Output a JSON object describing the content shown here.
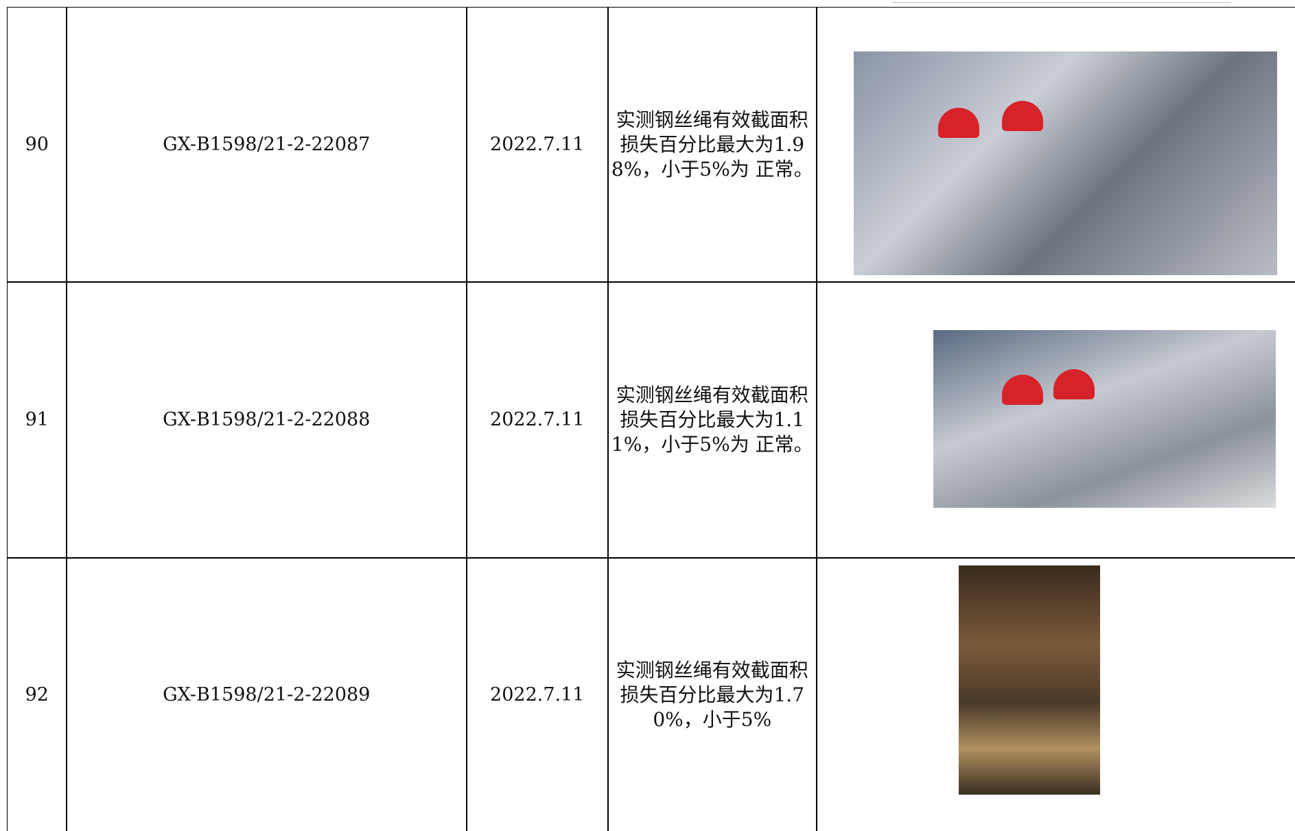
{
  "table": {
    "rows": [
      {
        "no": "90",
        "code": "GX-B1598/21-2-22087",
        "date": "2022.7.11",
        "result": "实测钢丝绳有效截面积损失百分比最大为1.98%，小于5%为 正常。"
      },
      {
        "no": "91",
        "code": "GX-B1598/21-2-22088",
        "date": "2022.7.11",
        "result": "实测钢丝绳有效截面积损失百分比最大为1.11%，小于5%为 正常。"
      },
      {
        "no": "92",
        "code": "GX-B1598/21-2-22089",
        "date": "2022.7.11",
        "result": "实测钢丝绳有效截面积损失百分比最大为1.70%，小于5%"
      }
    ]
  }
}
